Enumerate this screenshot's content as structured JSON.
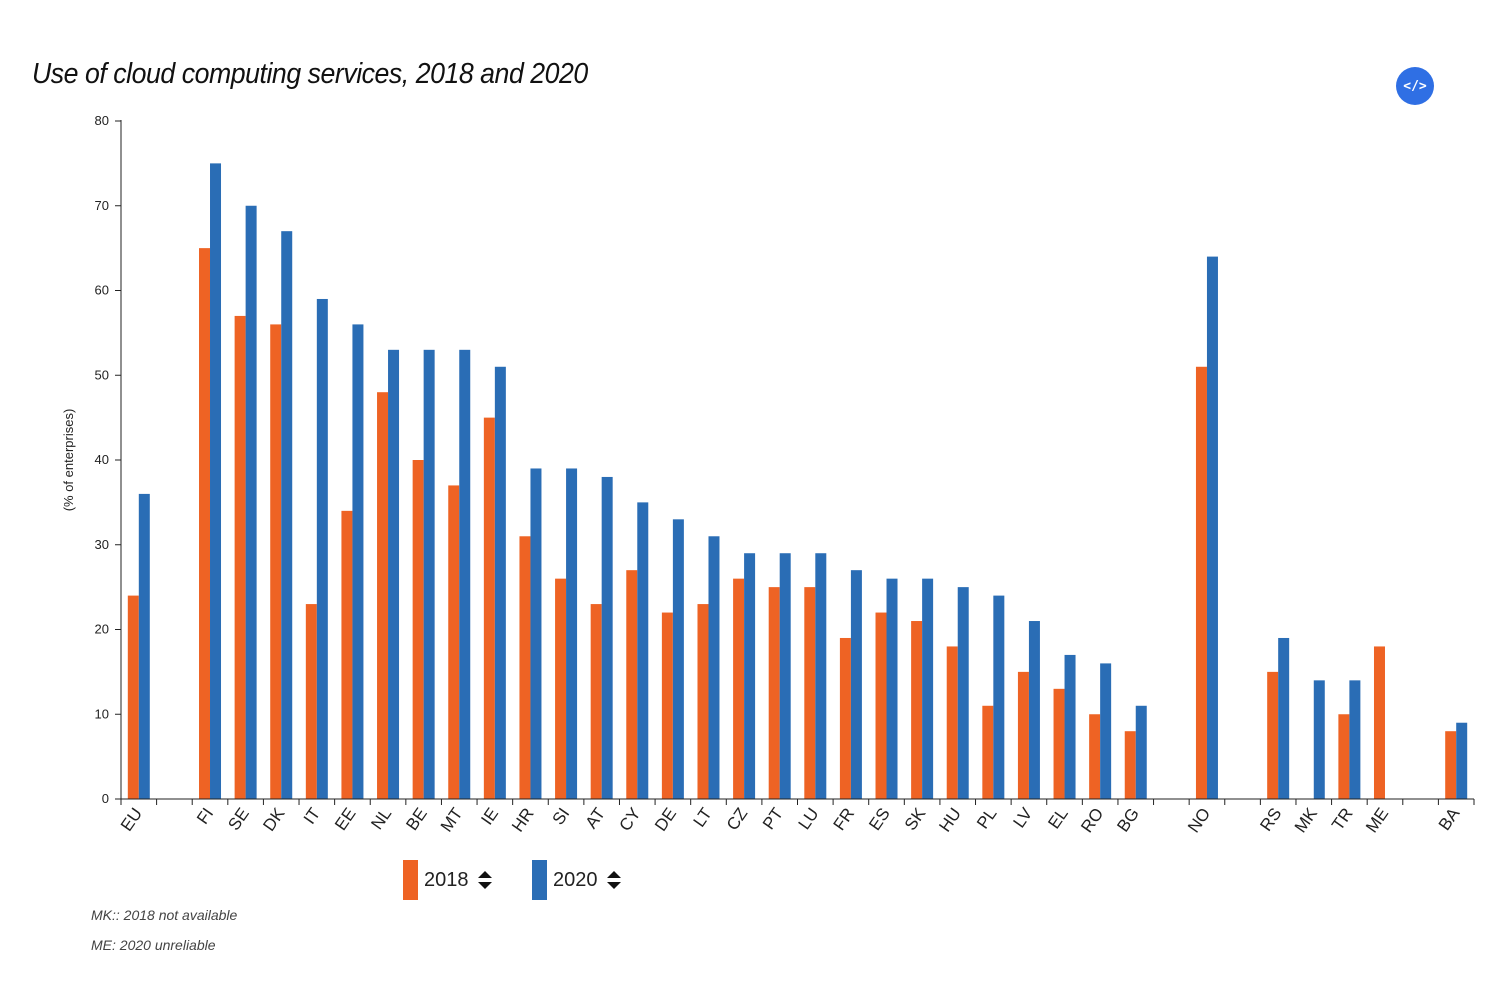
{
  "title": "Use of cloud computing services, 2018 and 2020",
  "embed_button": {
    "label": "</>",
    "icon": "code-embed-icon"
  },
  "colors": {
    "s2018": "#ee6324",
    "s2020": "#2a6db5",
    "axis": "#222222"
  },
  "legend": [
    {
      "label": "2018",
      "icon": "sort-updown-icon"
    },
    {
      "label": "2020",
      "icon": "sort-updown-icon"
    }
  ],
  "notes": [
    "MK:: 2018 not available",
    "ME: 2020 unreliable"
  ],
  "chart_data": {
    "type": "bar",
    "title": "Use of cloud computing services, 2018 and 2020",
    "xlabel": "",
    "ylabel": "(% of enterprises)",
    "ylim": [
      0,
      80
    ],
    "yticks": [
      0,
      10,
      20,
      30,
      40,
      50,
      60,
      70,
      80
    ],
    "grid": false,
    "legend_position": "bottom",
    "categories": [
      "EU",
      "",
      "FI",
      "SE",
      "DK",
      "IT",
      "EE",
      "NL",
      "BE",
      "MT",
      "IE",
      "HR",
      "SI",
      "AT",
      "CY",
      "DE",
      "LT",
      "CZ",
      "PT",
      "LU",
      "FR",
      "ES",
      "SK",
      "HU",
      "PL",
      "LV",
      "EL",
      "RO",
      "BG",
      "",
      "NO",
      "",
      "RS",
      "MK",
      "TR",
      "ME",
      "",
      "BA"
    ],
    "series": [
      {
        "name": "2018",
        "values": [
          24,
          null,
          65,
          57,
          56,
          23,
          34,
          48,
          40,
          37,
          45,
          31,
          26,
          23,
          27,
          22,
          23,
          26,
          25,
          25,
          19,
          22,
          21,
          18,
          11,
          15,
          13,
          10,
          8,
          null,
          51,
          null,
          15,
          null,
          10,
          18,
          null,
          8
        ]
      },
      {
        "name": "2020",
        "values": [
          36,
          null,
          75,
          70,
          67,
          59,
          56,
          53,
          53,
          53,
          51,
          39,
          39,
          38,
          35,
          33,
          31,
          29,
          29,
          29,
          27,
          26,
          26,
          25,
          24,
          21,
          17,
          16,
          11,
          null,
          64,
          null,
          19,
          14,
          14,
          null,
          null,
          9
        ]
      }
    ]
  }
}
